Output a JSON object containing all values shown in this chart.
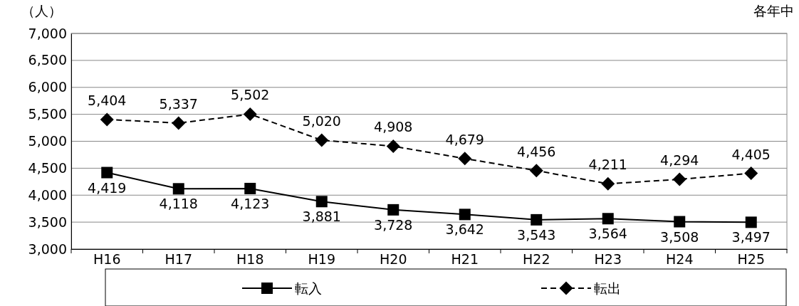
{
  "chart_data": {
    "type": "line",
    "ylabel": "（人）",
    "annotations": [
      "各年中"
    ],
    "categories": [
      "H16",
      "H17",
      "H18",
      "H19",
      "H20",
      "H21",
      "H22",
      "H23",
      "H24",
      "H25"
    ],
    "series": [
      {
        "name": "転入",
        "color": "#000000",
        "marker": "square",
        "line_style": "solid",
        "values": [
          4419,
          4118,
          4123,
          3881,
          3728,
          3642,
          3543,
          3564,
          3508,
          3497
        ],
        "value_labels": [
          "4,419",
          "4,118",
          "4,123",
          "3,881",
          "3,728",
          "3,642",
          "3,543",
          "3,564",
          "3,508",
          "3,497"
        ]
      },
      {
        "name": "転出",
        "color": "#000000",
        "marker": "diamond",
        "line_style": "dashed",
        "values": [
          5404,
          5337,
          5502,
          5020,
          4908,
          4679,
          4456,
          4211,
          4294,
          4405
        ],
        "value_labels": [
          "5,404",
          "5,337",
          "5,502",
          "5,020",
          "4,908",
          "4,679",
          "4,456",
          "4,211",
          "4,294",
          "4,405"
        ]
      }
    ],
    "ylim": [
      3000,
      7000
    ],
    "yticks": [
      {
        "value": 3000,
        "label": "3,000"
      },
      {
        "value": 3500,
        "label": "3,500"
      },
      {
        "value": 4000,
        "label": "4,000"
      },
      {
        "value": 4500,
        "label": "4,500"
      },
      {
        "value": 5000,
        "label": "5,000"
      },
      {
        "value": 5500,
        "label": "5,500"
      },
      {
        "value": 6000,
        "label": "6,000"
      },
      {
        "value": 6500,
        "label": "6,500"
      },
      {
        "value": 7000,
        "label": "7,000"
      }
    ],
    "grid": "y",
    "legend": "bottom"
  }
}
